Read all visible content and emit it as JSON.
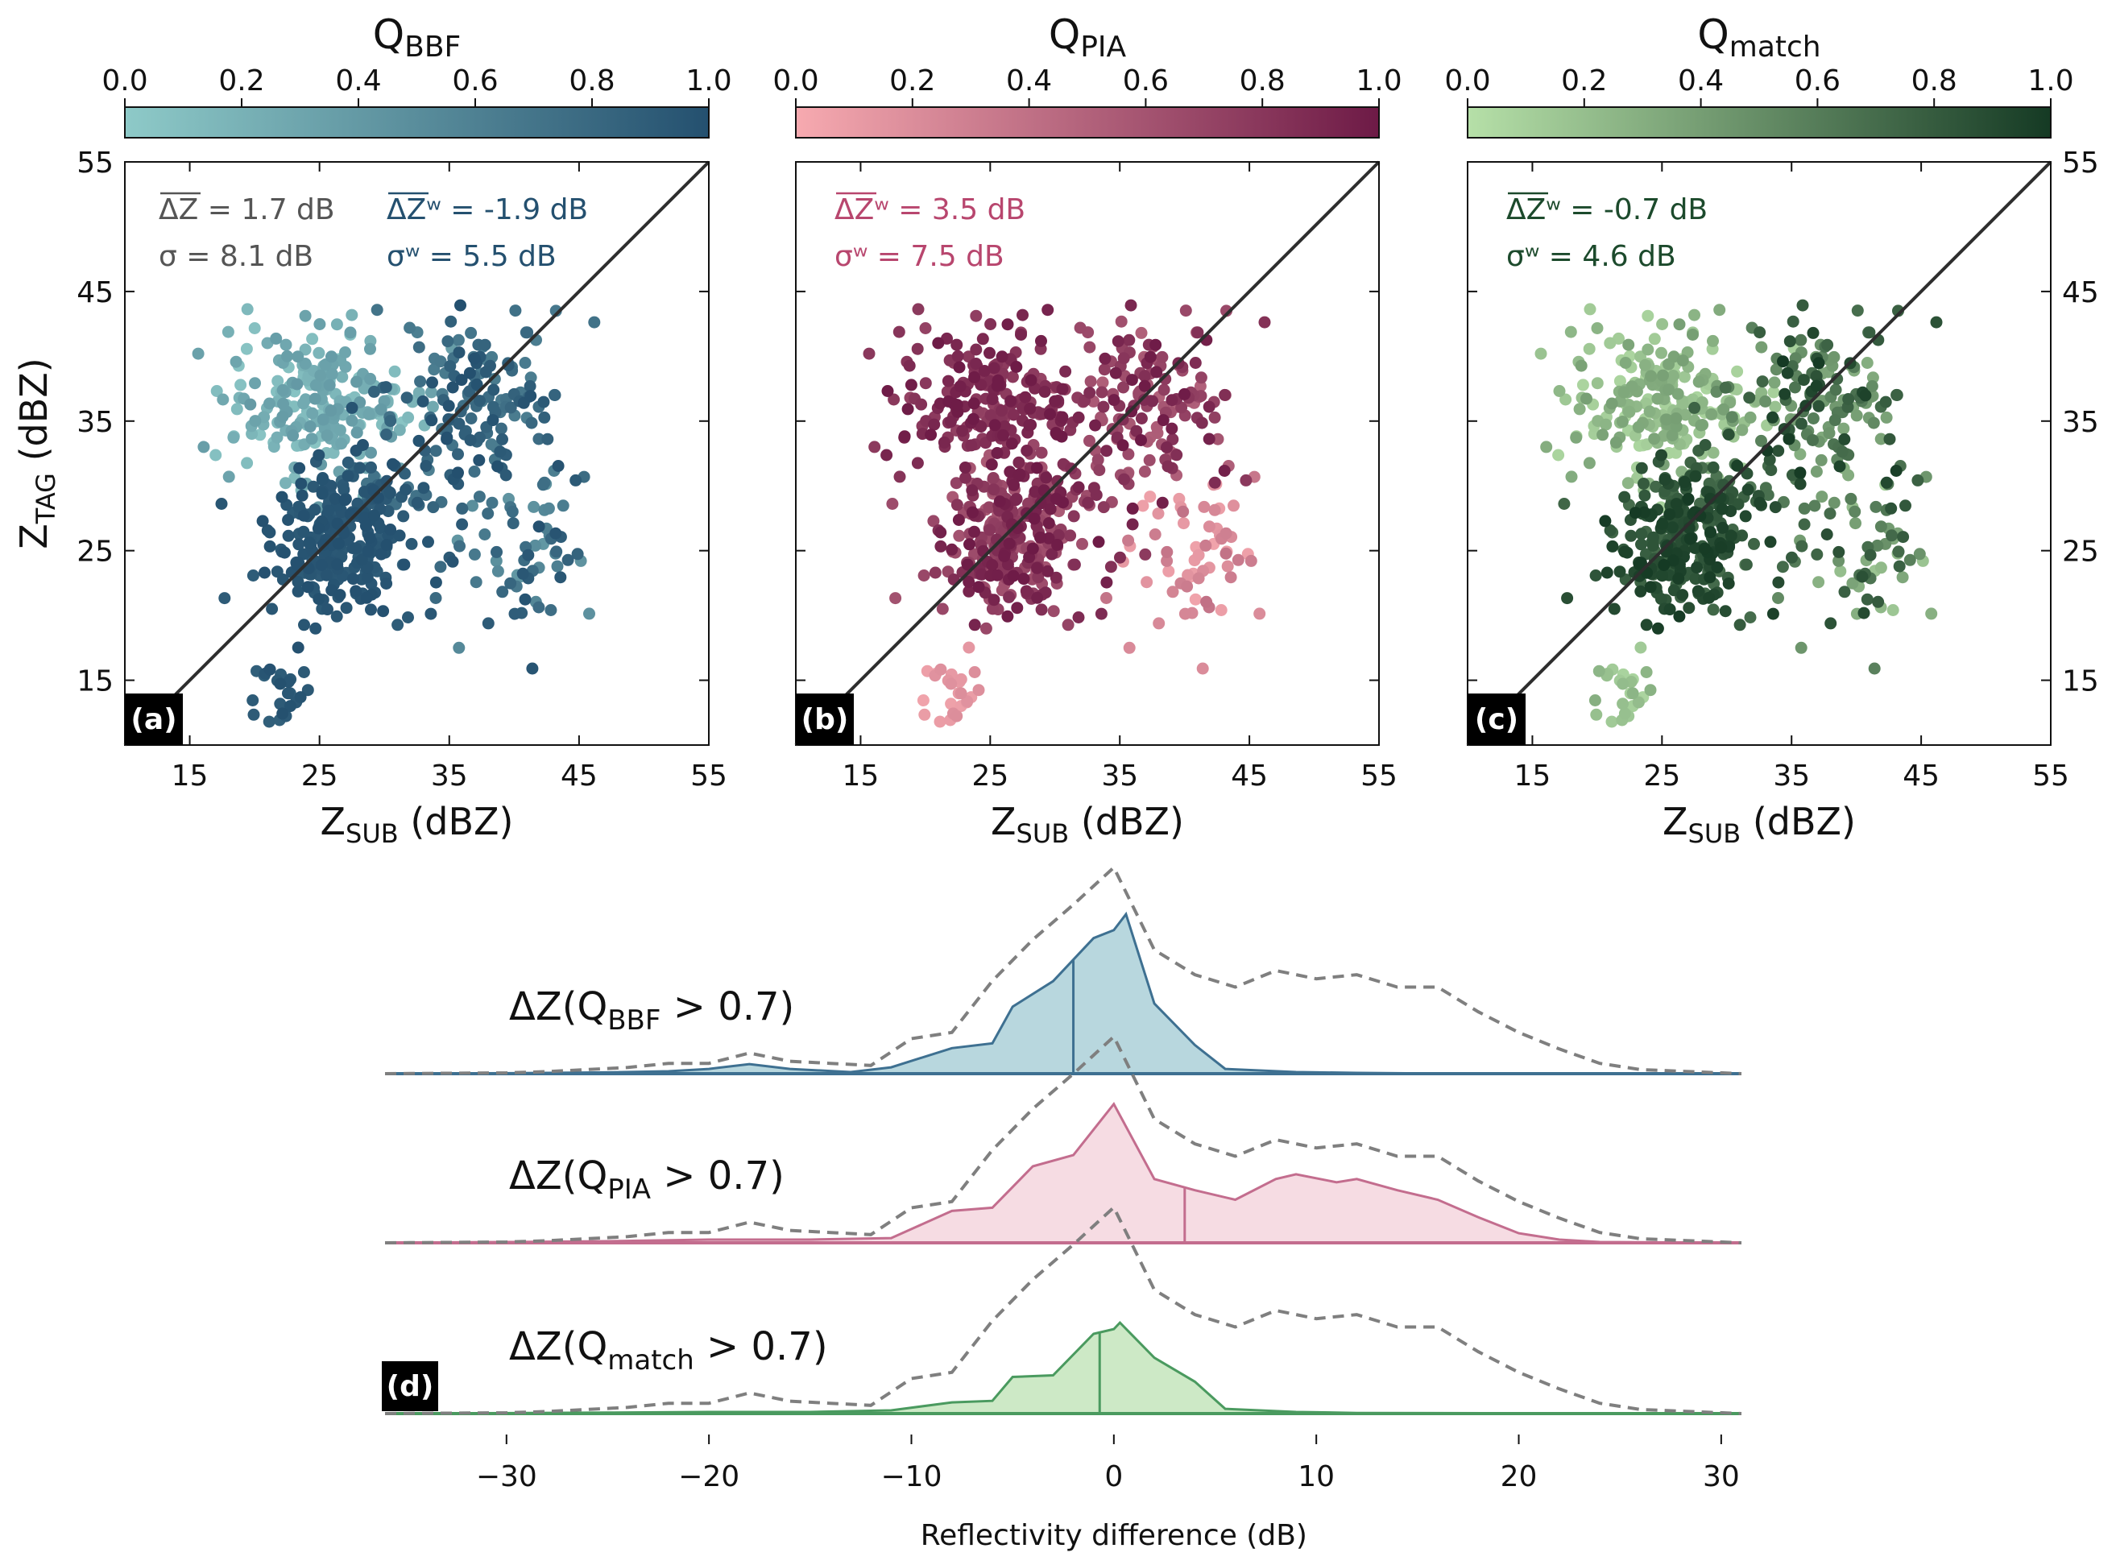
{
  "colors": {
    "bbf_light": "#8ecac8",
    "bbf_dark": "#24506f",
    "pia_light": "#f7aab0",
    "pia_dark": "#6d1a46",
    "match_light": "#b6e0a8",
    "match_dark": "#153a24",
    "identity_line": "#2e2e2e",
    "dashed": "#7f7f7f"
  },
  "chart_data": [
    {
      "type": "scatter",
      "panel": "(a)",
      "colorbar": {
        "title_base": "Q",
        "title_sub": "BBF",
        "ticks": [
          "0.0",
          "0.2",
          "0.4",
          "0.6",
          "0.8",
          "1.0"
        ]
      },
      "xlabel_base": "Z",
      "xlabel_sub": "SUB",
      "xlabel_unit": " (dBZ)",
      "ylabel_base": "Z",
      "ylabel_sub": "TAG",
      "ylabel_unit": " (dBZ)",
      "xlim": [
        10,
        55
      ],
      "ylim": [
        10,
        55
      ],
      "xticks": [
        15,
        25,
        35,
        45,
        55
      ],
      "yticks": [
        15,
        25,
        35,
        45,
        55
      ],
      "yaxis_side": "left",
      "stats": [
        {
          "text": "ΔZ = 1.7 dB",
          "color": "#555555"
        },
        {
          "text": "σ = 8.1 dB",
          "color": "#555555"
        },
        {
          "text": "ΔZʷ = -1.9 dB",
          "color": "#24506f"
        },
        {
          "text": "σʷ = 5.5 dB",
          "color": "#24506f"
        }
      ]
    },
    {
      "type": "scatter",
      "panel": "(b)",
      "colorbar": {
        "title_base": "Q",
        "title_sub": "PIA",
        "ticks": [
          "0.0",
          "0.2",
          "0.4",
          "0.6",
          "0.8",
          "1.0"
        ]
      },
      "xlabel_base": "Z",
      "xlabel_sub": "SUB",
      "xlabel_unit": " (dBZ)",
      "xlim": [
        10,
        55
      ],
      "ylim": [
        10,
        55
      ],
      "xticks": [
        15,
        25,
        35,
        45,
        55
      ],
      "yticks": [
        15,
        25,
        35,
        45,
        55
      ],
      "yaxis_side": "none",
      "stats": [
        {
          "text": "ΔZʷ = 3.5 dB",
          "color": "#b8466e"
        },
        {
          "text": "σʷ = 7.5 dB",
          "color": "#b8466e"
        }
      ]
    },
    {
      "type": "scatter",
      "panel": "(c)",
      "colorbar": {
        "title_base": "Q",
        "title_sub": "match",
        "ticks": [
          "0.0",
          "0.2",
          "0.4",
          "0.6",
          "0.8",
          "1.0"
        ]
      },
      "xlabel_base": "Z",
      "xlabel_sub": "SUB",
      "xlabel_unit": " (dBZ)",
      "xlim": [
        10,
        55
      ],
      "ylim": [
        10,
        55
      ],
      "xticks": [
        15,
        25,
        35,
        45,
        55
      ],
      "yticks": [
        15,
        25,
        35,
        45,
        55
      ],
      "yaxis_side": "right",
      "stats": [
        {
          "text": "ΔZʷ = -0.7 dB",
          "color": "#1c4a2c"
        },
        {
          "text": "σʷ = 4.6 dB",
          "color": "#1c4a2c"
        }
      ]
    },
    {
      "type": "area",
      "panel": "(d)",
      "xlabel": "Reflectivity difference (dB)",
      "xlim": [
        -36,
        31
      ],
      "xticks": [
        -30,
        -20,
        -10,
        0,
        10,
        20,
        30
      ],
      "xtick_labels": [
        "−30",
        "−20",
        "−10",
        "0",
        "10",
        "20",
        "30"
      ],
      "dashed_all": {
        "x": [
          -36,
          -30,
          -28,
          -24,
          -22,
          -20,
          -18,
          -16,
          -14,
          -12,
          -10,
          -8,
          -6,
          -4,
          -2,
          0,
          2,
          4,
          6,
          8,
          10,
          12,
          14,
          16,
          18,
          20,
          22,
          24,
          26,
          31
        ],
        "y": [
          0,
          0.004,
          0.01,
          0.03,
          0.05,
          0.05,
          0.1,
          0.06,
          0.05,
          0.04,
          0.17,
          0.2,
          0.45,
          0.65,
          0.82,
          1.0,
          0.6,
          0.48,
          0.42,
          0.5,
          0.46,
          0.48,
          0.42,
          0.42,
          0.3,
          0.2,
          0.12,
          0.05,
          0.02,
          0
        ]
      },
      "series": [
        {
          "label_base": "ΔZ(Q",
          "label_sub": "BBF",
          "label_tail": " > 0.7)",
          "color": "#3e7091",
          "fill": "#a6cdd6",
          "median": -2.0,
          "x": [
            -36,
            -30,
            -25,
            -22,
            -20,
            -18,
            -16,
            -13,
            -11,
            -8,
            -6,
            -5,
            -3,
            -1,
            0,
            0.6,
            2,
            4,
            5.5,
            9,
            12,
            15,
            20,
            31
          ],
          "y": [
            0,
            0.003,
            0.008,
            0.015,
            0.03,
            0.06,
            0.03,
            0.01,
            0.04,
            0.16,
            0.19,
            0.42,
            0.58,
            0.85,
            0.9,
            1.0,
            0.44,
            0.18,
            0.03,
            0.01,
            0.005,
            0.002,
            0.001,
            0
          ]
        },
        {
          "label_base": "ΔZ(Q",
          "label_sub": "PIA",
          "label_tail": " > 0.7)",
          "color": "#c36d8e",
          "fill": "#f4d3dc",
          "median": 3.5,
          "x": [
            -36,
            -30,
            -25,
            -20,
            -15,
            -11,
            -8,
            -6,
            -4,
            -2,
            0,
            2,
            4,
            6,
            8,
            9,
            11,
            12,
            14,
            16,
            18,
            20,
            22,
            24,
            31
          ],
          "y": [
            0,
            0.005,
            0.01,
            0.02,
            0.02,
            0.03,
            0.2,
            0.22,
            0.48,
            0.55,
            0.87,
            0.4,
            0.33,
            0.27,
            0.4,
            0.43,
            0.38,
            0.4,
            0.33,
            0.27,
            0.16,
            0.06,
            0.02,
            0.005,
            0
          ]
        },
        {
          "label_base": "ΔZ(Q",
          "label_sub": "match",
          "label_tail": " > 0.7)",
          "color": "#4a9a5f",
          "fill": "#c1e4b8",
          "median": -0.7,
          "x": [
            -36,
            -30,
            -25,
            -20,
            -15,
            -11,
            -8,
            -6,
            -5,
            -3,
            -1,
            0,
            0.3,
            2,
            4,
            5.5,
            9,
            12,
            31
          ],
          "y": [
            0,
            0.003,
            0.006,
            0.01,
            0.01,
            0.02,
            0.07,
            0.08,
            0.23,
            0.24,
            0.5,
            0.53,
            0.57,
            0.35,
            0.2,
            0.03,
            0.01,
            0.004,
            0
          ]
        }
      ],
      "panel_tag": "(d)"
    }
  ]
}
